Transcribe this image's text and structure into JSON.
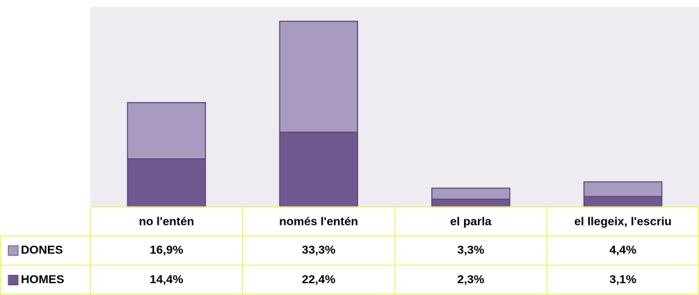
{
  "chart_data": {
    "type": "bar",
    "stacked": true,
    "categories": [
      "no l'entén",
      "només l'entén",
      "el parla",
      "el llegeix, l'escriu"
    ],
    "series": [
      {
        "name": "HOMES",
        "color": "#6f5990",
        "values": [
          14.4,
          22.4,
          2.3,
          3.1
        ],
        "value_labels": [
          "14,4%",
          "22,4%",
          "2,3%",
          "3,1%"
        ]
      },
      {
        "name": "DONES",
        "color": "#a99bc0",
        "values": [
          16.9,
          33.3,
          3.3,
          4.4
        ],
        "value_labels": [
          "16,9%",
          "33,3%",
          "3,3%",
          "4,4%"
        ]
      }
    ],
    "ylim": [
      0,
      60
    ]
  }
}
